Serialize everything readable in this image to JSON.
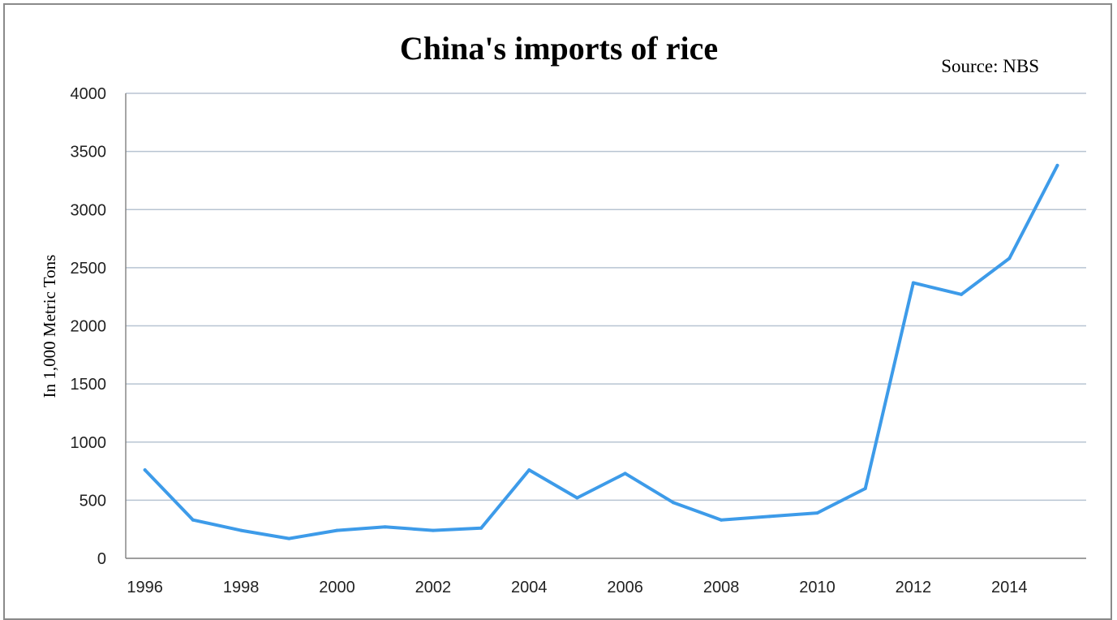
{
  "chart_data": {
    "type": "line",
    "title": "China's imports of rice",
    "source": "Source: NBS",
    "ylabel": "In 1,000 Metric Tons",
    "xlabel": "",
    "ylim": [
      0,
      4000
    ],
    "yticks": [
      0,
      500,
      1000,
      1500,
      2000,
      2500,
      3000,
      3500,
      4000
    ],
    "xticks": [
      1996,
      1998,
      2000,
      2002,
      2004,
      2006,
      2008,
      2010,
      2012,
      2014
    ],
    "xlim": [
      1995.6,
      2015.6
    ],
    "grid": true,
    "legend": "none",
    "series": [
      {
        "color": "#3d9be9",
        "x": [
          1996,
          1997,
          1998,
          1999,
          2000,
          2001,
          2002,
          2003,
          2004,
          2005,
          2006,
          2007,
          2008,
          2009,
          2010,
          2011,
          2012,
          2013,
          2014,
          2015
        ],
        "values": [
          760,
          330,
          240,
          170,
          240,
          270,
          240,
          260,
          760,
          520,
          730,
          480,
          330,
          360,
          390,
          600,
          2370,
          2270,
          2580,
          3380
        ]
      }
    ]
  }
}
